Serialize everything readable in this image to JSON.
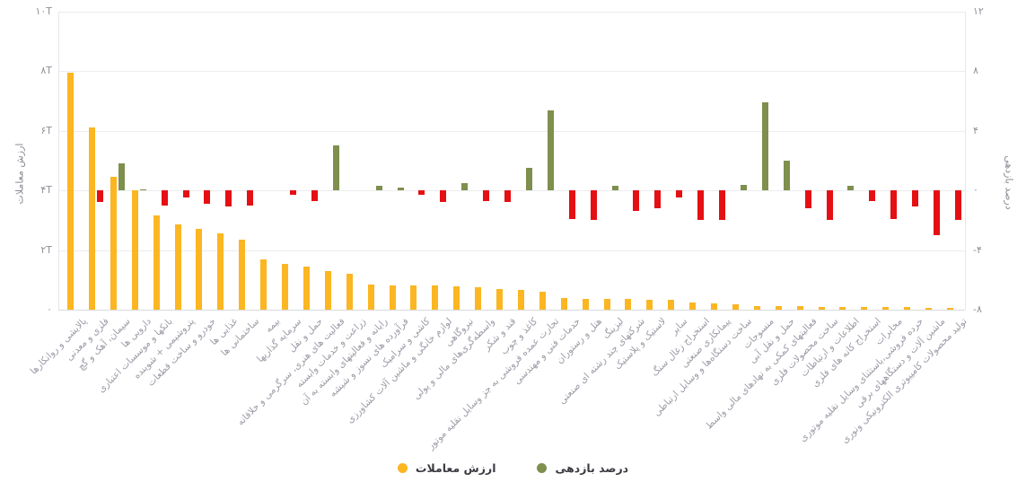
{
  "chart_data": {
    "type": "bar",
    "title": "",
    "rtl": true,
    "grid": true,
    "legend_position": "bottom",
    "categories": [
      "پالایشی و روانکارها",
      "فلزی و معدنی",
      "سیمان، آهک و گچ",
      "دارویی ها",
      "بانکها و موسسات اعتباری",
      "پتروشیمی + شوینده",
      "خودرو و ساخت قطعات",
      "غذایی ها",
      "ساختمانی ها",
      "بیمه",
      "سرمایه گذاریها",
      "حمل و نقل",
      "فعالیت های هنری، سرگرمی و خلاقانه",
      "زراعت و خدمات وابسته",
      "رایانه و فعالیتهای وابسته به آن",
      "فرآورده های نسوز و شیشه",
      "کاشی و سرامیک",
      "لوازم خانگی و ماشین آلات کشاورزی",
      "نیروگاهی",
      "واسطه‌گری‌های مالی و پولی",
      "قند و شکر",
      "کاغذ و چوب",
      "تجارت عمده فروشی به جز وسایل نقلیه موتور",
      "خدمات فنی و مهندسی",
      "هتل و رستوران",
      "لیزینگ",
      "شرکتهای چند رشته ای صنعتی",
      "لاستیک و پلاستیک",
      "سایر",
      "استخراج زغال سنگ",
      "پیمانکاری صنعتی",
      "ساخت دستگاه‌ها و وسایل ارتباطی",
      "منسوجات",
      "حمل و نقل آبی",
      "فعالیتهای کمکی به نهادهای مالی واسط",
      "ساخت محصولات فلزی",
      "اطلاعات و ارتباطات",
      "استخراج کانه های فلزی",
      "مخابرات",
      "خرده فروشی،باستثنای وسایل نقلیه موتوری",
      "ماشین آلات و دستگاههای برقی",
      "تولید محصولات کامپیوتری الکترونیکی ونوری"
    ],
    "series": [
      {
        "name": "ارزش معاملات",
        "axis": "left",
        "unit": "T",
        "color": "#FBB622",
        "values": [
          7.95,
          6.1,
          4.45,
          4.0,
          3.15,
          2.85,
          2.7,
          2.55,
          2.35,
          1.7,
          1.55,
          1.45,
          1.3,
          1.2,
          0.85,
          0.82,
          0.8,
          0.8,
          0.78,
          0.75,
          0.7,
          0.67,
          0.6,
          0.4,
          0.36,
          0.35,
          0.35,
          0.32,
          0.33,
          0.23,
          0.2,
          0.17,
          0.13,
          0.13,
          0.12,
          0.1,
          0.1,
          0.09,
          0.08,
          0.08,
          0.07,
          0.06
        ]
      },
      {
        "name": "درصد بازدهی",
        "axis": "right",
        "unit": "%",
        "color_positive": "#7E8F4E",
        "color_negative": "#E41013",
        "values": [
          0,
          -0.8,
          1.8,
          0.1,
          -1.0,
          -0.45,
          -0.9,
          -1.1,
          -1.0,
          0,
          -0.3,
          -0.7,
          3.0,
          0,
          0.3,
          0.2,
          -0.3,
          -0.75,
          0.5,
          -0.7,
          -0.75,
          1.5,
          5.4,
          -1.9,
          -2.0,
          0.3,
          -1.4,
          -1.2,
          -0.45,
          -2.0,
          -1.95,
          0.4,
          5.9,
          2.0,
          -1.2,
          -2.0,
          0.3,
          -0.7,
          -1.9,
          -1.1,
          -3.0,
          -2.0
        ]
      }
    ],
    "axes": {
      "left": {
        "title": "ارزش معاملات",
        "ticks": [
          "۱۰T",
          "۸T",
          "۶T",
          "۴T",
          "۲T",
          "۰"
        ],
        "min": 0,
        "max": 10
      },
      "right": {
        "title": "درصد بازدهی",
        "ticks": [
          "۱۲",
          "۸",
          "۴",
          "۰",
          "-۴",
          "-۸"
        ],
        "min": -8,
        "max": 12
      }
    },
    "legend": {
      "items": [
        {
          "label": "ارزش معاملات",
          "color": "#FBB622"
        },
        {
          "label": "درصد بازدهی",
          "color": "#7E8F4E"
        }
      ]
    }
  },
  "colors": {
    "background": "#ffffff",
    "gridline": "#ededf1",
    "baseline": "#d9dade",
    "tick_text": "#8f9099",
    "category_text": "#9b9ca6",
    "legend_text": "#3b3c42"
  }
}
